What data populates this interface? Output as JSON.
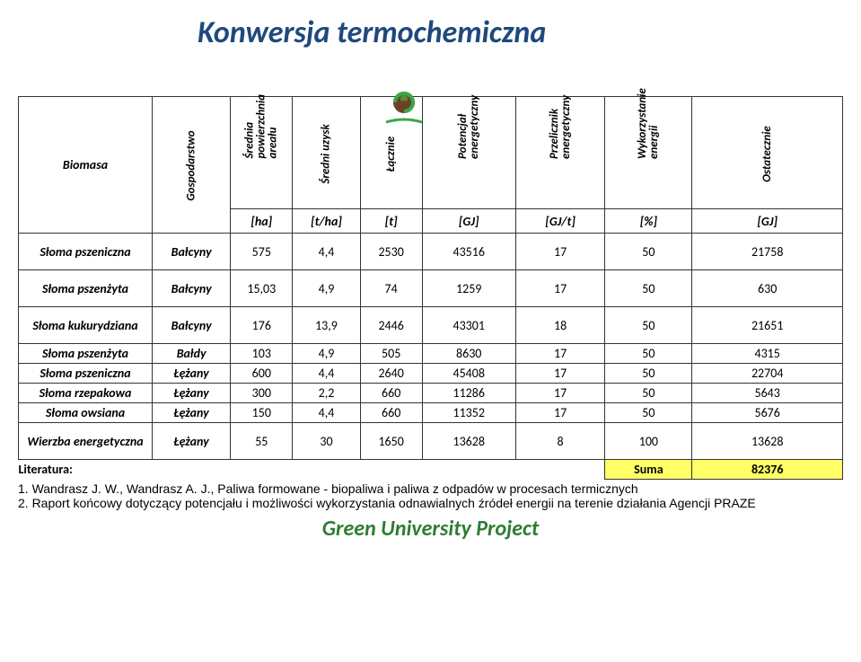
{
  "title": "Konwersja termochemiczna",
  "footer": "Green University Project",
  "headers": {
    "biomasa": "Biomasa",
    "gospodarstwo": "Gospodarstwo",
    "srednia": "Średnia powierzchnia areału",
    "uzysk": "Średni uzysk",
    "lacznie": "Łącznie",
    "potencjal": "Potencjał energetyczny",
    "przelicznik": "Przelicznik energetyczny",
    "wykorzystanie": "Wykorzystanie energii",
    "ostatecznie": "Ostatecznie"
  },
  "units": {
    "ha": "[ha]",
    "tha": "[t/ha]",
    "t": "[t]",
    "gj": "[GJ]",
    "gjt": "[GJ/t]",
    "pct": "[%]",
    "gj2": "[GJ]"
  },
  "rows": [
    {
      "name": "Słoma pszeniczna",
      "gosp": "Bałcyny",
      "ha": "575",
      "tha": "4,4",
      "t": "2530",
      "gj": "43516",
      "gjt": "17",
      "pct": "50",
      "gj2": "21758",
      "tall": true
    },
    {
      "name": "Słoma pszenżyta",
      "gosp": "Bałcyny",
      "ha": "15,03",
      "tha": "4,9",
      "t": "74",
      "gj": "1259",
      "gjt": "17",
      "pct": "50",
      "gj2": "630",
      "tall": true
    },
    {
      "name": "Słoma kukurydziana",
      "gosp": "Bałcyny",
      "ha": "176",
      "tha": "13,9",
      "t": "2446",
      "gj": "43301",
      "gjt": "18",
      "pct": "50",
      "gj2": "21651",
      "tall": true
    },
    {
      "name": "Słoma pszenżyta",
      "gosp": "Bałdy",
      "ha": "103",
      "tha": "4,9",
      "t": "505",
      "gj": "8630",
      "gjt": "17",
      "pct": "50",
      "gj2": "4315",
      "tall": false
    },
    {
      "name": "Słoma pszeniczna",
      "gosp": "Łężany",
      "ha": "600",
      "tha": "4,4",
      "t": "2640",
      "gj": "45408",
      "gjt": "17",
      "pct": "50",
      "gj2": "22704",
      "tall": false
    },
    {
      "name": "Słoma rzepakowa",
      "gosp": "Łężany",
      "ha": "300",
      "tha": "2,2",
      "t": "660",
      "gj": "11286",
      "gjt": "17",
      "pct": "50",
      "gj2": "5643",
      "tall": false
    },
    {
      "name": "Słoma owsiana",
      "gosp": "Łężany",
      "ha": "150",
      "tha": "4,4",
      "t": "660",
      "gj": "11352",
      "gjt": "17",
      "pct": "50",
      "gj2": "5676",
      "tall": false
    },
    {
      "name": "Wierzba energetyczna",
      "gosp": "Łężany",
      "ha": "55",
      "tha": "30",
      "t": "1650",
      "gj": "13628",
      "gjt": "8",
      "pct": "100",
      "gj2": "13628",
      "tall": true
    }
  ],
  "sum": {
    "label": "Suma",
    "value": "82376"
  },
  "literature": {
    "title": "Literatura:",
    "items": [
      "1.  Wandrasz J. W., Wandrasz A. J., Paliwa formowane - biopaliwa i paliwa z odpadów w procesach termicznych",
      "2.  Raport końcowy dotyczący potencjału i możliwości wykorzystania odnawialnych źródeł energii na terenie działania Agencji PRAZE"
    ]
  },
  "colors": {
    "title": "#1f497d",
    "sum_bg": "#ffff66",
    "footer": "#2e7d32"
  }
}
